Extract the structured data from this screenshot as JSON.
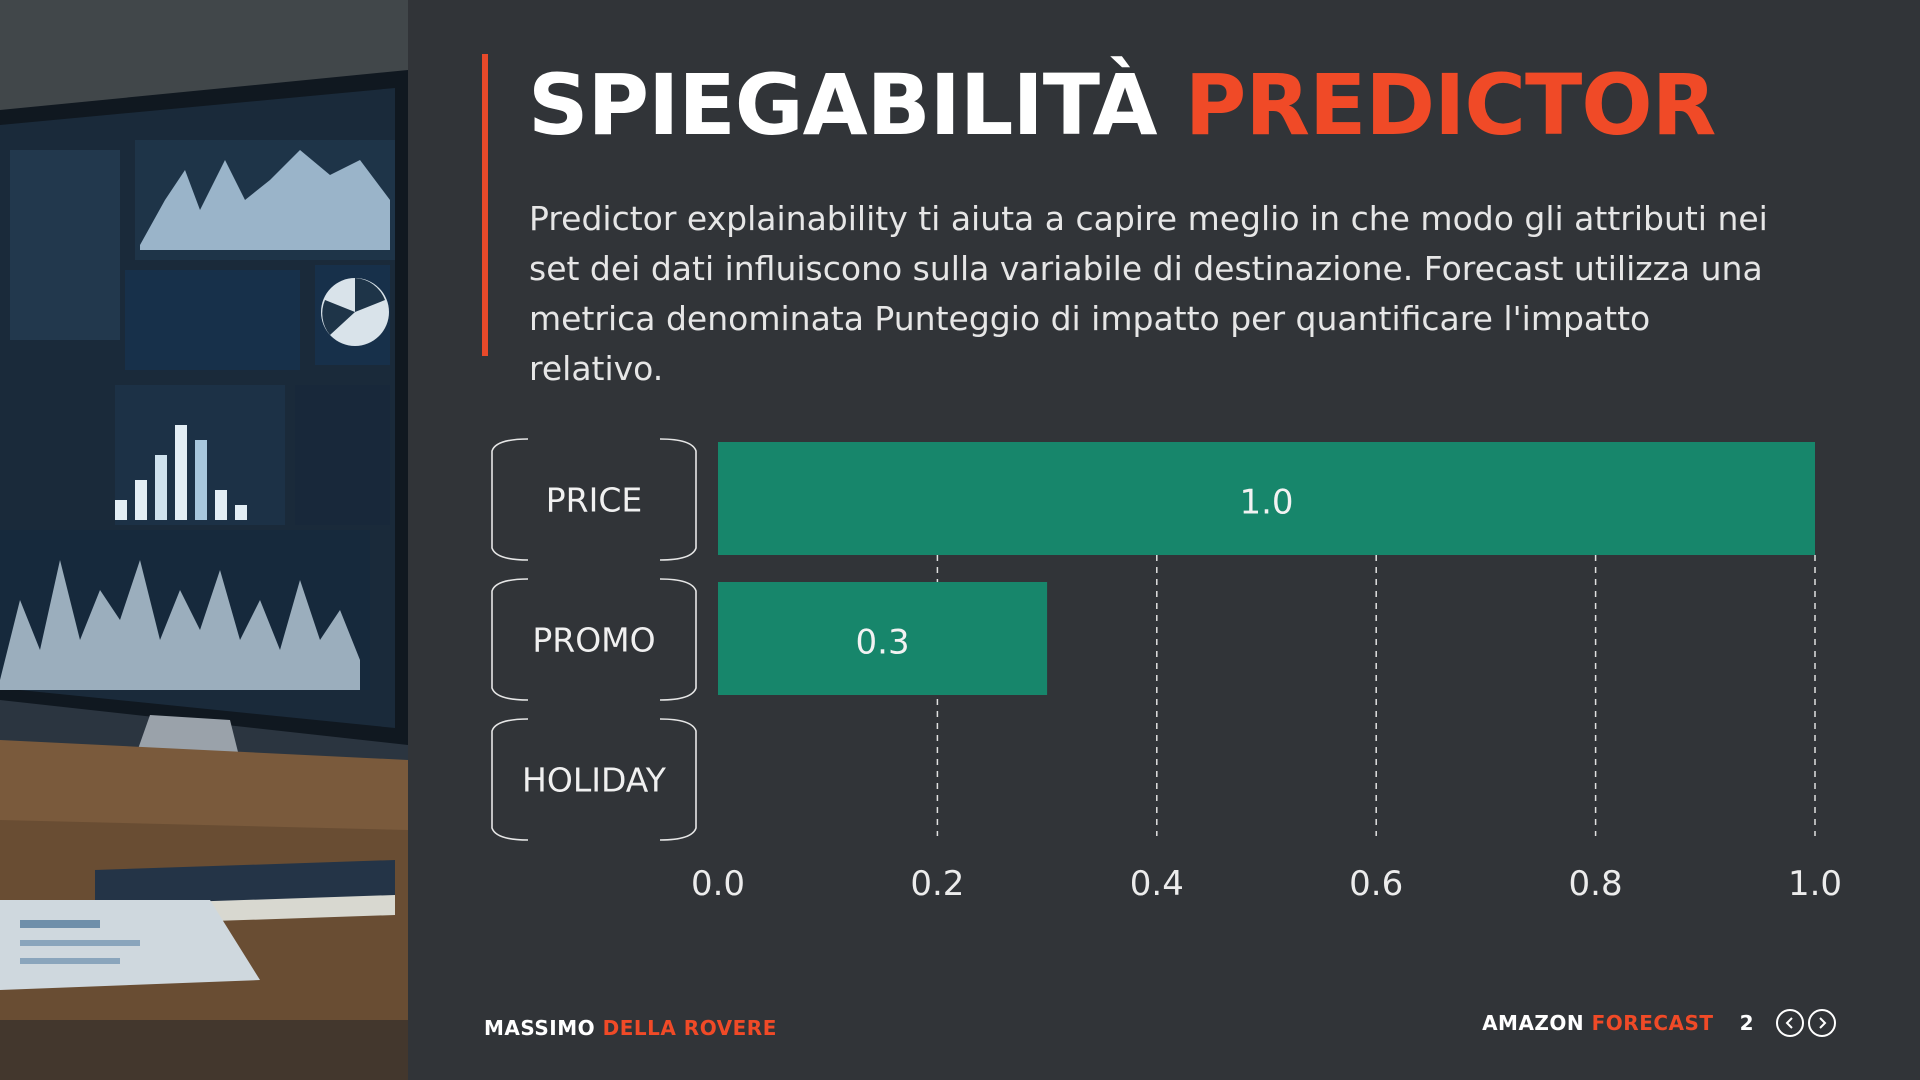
{
  "slide": {
    "title_main": "SPIEGABILITÀ",
    "title_highlight": "PREDICTOR",
    "description": "Predictor explainability ti aiuta a capire meglio in che modo gli attributi nei set dei dati influiscono sulla variabile di destinazione. Forecast utilizza una metrica denominata Punteggio di impatto per quantificare l'impatto relativo."
  },
  "footer": {
    "author_first": "MASSIMO",
    "author_last": "DELLA ROVERE",
    "product_first": "AMAZON",
    "product_last": "FORECAST",
    "page_number": "2"
  },
  "colors": {
    "accent": "#f04a27",
    "bar": "#17866b",
    "background": "#313438"
  },
  "icons": [
    "chevron-left-icon",
    "chevron-right-icon"
  ],
  "chart_data": {
    "type": "bar",
    "orientation": "horizontal",
    "categories": [
      "PRICE",
      "PROMO",
      "HOLIDAY"
    ],
    "values": [
      1.0,
      0.3,
      0.0
    ],
    "value_labels": [
      "1.0",
      "0.3",
      ""
    ],
    "xlim": [
      0,
      1.0
    ],
    "xticks": [
      "0.0",
      "0.2",
      "0.4",
      "0.6",
      "0.8",
      "1.0"
    ],
    "grid": "vertical dashed"
  }
}
